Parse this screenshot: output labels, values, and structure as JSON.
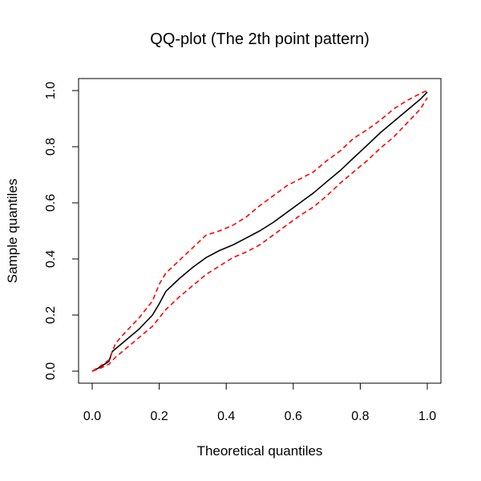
{
  "chart_data": {
    "type": "line",
    "title": "QQ-plot (The 2th point pattern)",
    "xlabel": "Theoretical quantiles",
    "ylabel": "Sample quantiles",
    "xlim": [
      0.0,
      1.0
    ],
    "ylim": [
      0.0,
      1.0
    ],
    "x_ticks": [
      "0.0",
      "0.2",
      "0.4",
      "0.6",
      "0.8",
      "1.0"
    ],
    "y_ticks": [
      "0.0",
      "0.2",
      "0.4",
      "0.6",
      "0.8",
      "1.0"
    ],
    "grid": false,
    "legend": "none",
    "series": [
      {
        "color": "#000000",
        "dash": "solid",
        "x": [
          0.0,
          0.02,
          0.05,
          0.06,
          0.1,
          0.14,
          0.18,
          0.2,
          0.22,
          0.26,
          0.3,
          0.34,
          0.38,
          0.42,
          0.46,
          0.5,
          0.54,
          0.58,
          0.62,
          0.66,
          0.7,
          0.74,
          0.78,
          0.82,
          0.86,
          0.9,
          0.94,
          0.98,
          1.0
        ],
        "y": [
          0.0,
          0.012,
          0.035,
          0.07,
          0.11,
          0.15,
          0.2,
          0.24,
          0.285,
          0.33,
          0.37,
          0.405,
          0.43,
          0.45,
          0.475,
          0.5,
          0.53,
          0.565,
          0.6,
          0.635,
          0.675,
          0.715,
          0.76,
          0.805,
          0.85,
          0.89,
          0.93,
          0.97,
          0.995
        ]
      },
      {
        "color": "#ff0000",
        "dash": "dashed",
        "x": [
          0.0,
          0.02,
          0.05,
          0.07,
          0.1,
          0.14,
          0.18,
          0.2,
          0.22,
          0.26,
          0.3,
          0.34,
          0.38,
          0.42,
          0.46,
          0.5,
          0.54,
          0.58,
          0.62,
          0.66,
          0.7,
          0.74,
          0.78,
          0.82,
          0.86,
          0.9,
          0.94,
          0.98,
          1.0
        ],
        "y": [
          0.0,
          0.015,
          0.04,
          0.1,
          0.14,
          0.19,
          0.25,
          0.31,
          0.35,
          0.395,
          0.44,
          0.485,
          0.5,
          0.52,
          0.55,
          0.59,
          0.625,
          0.66,
          0.685,
          0.71,
          0.75,
          0.785,
          0.83,
          0.86,
          0.895,
          0.935,
          0.965,
          0.99,
          1.0
        ]
      },
      {
        "color": "#ff0000",
        "dash": "dashed",
        "x": [
          0.0,
          0.02,
          0.05,
          0.07,
          0.1,
          0.14,
          0.18,
          0.22,
          0.26,
          0.3,
          0.34,
          0.38,
          0.42,
          0.46,
          0.5,
          0.54,
          0.58,
          0.62,
          0.66,
          0.7,
          0.74,
          0.78,
          0.82,
          0.86,
          0.9,
          0.94,
          0.98,
          1.0
        ],
        "y": [
          0.0,
          0.008,
          0.025,
          0.05,
          0.08,
          0.12,
          0.16,
          0.22,
          0.265,
          0.305,
          0.345,
          0.375,
          0.405,
          0.425,
          0.45,
          0.485,
          0.52,
          0.555,
          0.585,
          0.625,
          0.67,
          0.71,
          0.75,
          0.795,
          0.835,
          0.885,
          0.935,
          0.975
        ]
      }
    ]
  }
}
